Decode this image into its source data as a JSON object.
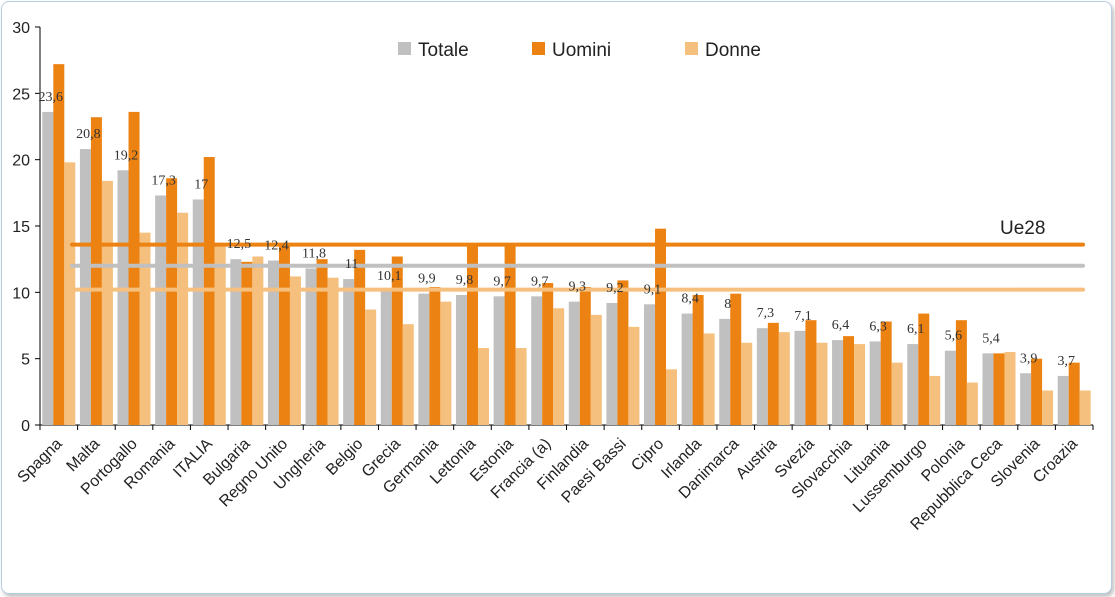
{
  "chart_data": {
    "type": "bar",
    "categories": [
      "Spagna",
      "Malta",
      "Portogallo",
      "Romania",
      "ITALIA",
      "Bulgaria",
      "Regno Unito",
      "Ungheria",
      "Belgio",
      "Grecia",
      "Germania",
      "Lettonia",
      "Estonia",
      "Francia (a)",
      "Finlandia",
      "Paesi Bassi",
      "Cipro",
      "Irlanda",
      "Danimarca",
      "Austria",
      "Svezia",
      "Slovacchia",
      "Lituania",
      "Lussemburgo",
      "Polonia",
      "Repubblica Ceca",
      "Slovenia",
      "Croazia"
    ],
    "series": [
      {
        "name": "Totale",
        "color": "#c0c0c0",
        "values": [
          23.6,
          20.8,
          19.2,
          17.3,
          17,
          12.5,
          12.4,
          11.8,
          11,
          10.1,
          9.9,
          9.8,
          9.7,
          9.7,
          9.3,
          9.2,
          9.1,
          8.4,
          8,
          7.3,
          7.1,
          6.4,
          6.3,
          6.1,
          5.6,
          5.4,
          3.9,
          3.7
        ],
        "labels": [
          "23,6",
          "20,8",
          "19,2",
          "17,3",
          "17",
          "12,5",
          "12,4",
          "11,8",
          "11",
          "10,1",
          "9,9",
          "9,8",
          "9,7",
          "9,7",
          "9,3",
          "9,2",
          "9,1",
          "8,4",
          "8",
          "7,3",
          "7,1",
          "6,4",
          "6,3",
          "6,1",
          "5,6",
          "5,4",
          "3,9",
          "3,7"
        ]
      },
      {
        "name": "Uomini",
        "color": "#ec8212",
        "values": [
          27.2,
          23.2,
          23.6,
          18.6,
          20.2,
          12.3,
          13.5,
          12.5,
          13.2,
          12.7,
          10.4,
          13.7,
          13.7,
          10.7,
          10.4,
          10.9,
          14.8,
          9.8,
          9.9,
          7.7,
          7.9,
          6.7,
          7.8,
          8.4,
          7.9,
          5.4,
          5.0,
          4.7
        ]
      },
      {
        "name": "Donne",
        "color": "#f5c07e",
        "values": [
          19.8,
          18.4,
          14.5,
          16.0,
          13.6,
          12.7,
          11.2,
          11.1,
          8.7,
          7.6,
          9.3,
          5.8,
          5.8,
          8.8,
          8.3,
          7.4,
          4.2,
          6.9,
          6.2,
          7.0,
          6.2,
          6.1,
          4.7,
          3.7,
          3.2,
          5.5,
          2.6,
          2.6
        ]
      }
    ],
    "reference_lines": {
      "label": "Ue28",
      "Totale": 12.0,
      "Uomini": 13.6,
      "Donne": 10.2
    },
    "yticks": [
      "0",
      "5",
      "10",
      "15",
      "20",
      "25",
      "30"
    ],
    "ylim": [
      0,
      30
    ],
    "xlabel": "",
    "ylabel": "",
    "title": "",
    "grid": false,
    "legend_position": "top-center"
  }
}
